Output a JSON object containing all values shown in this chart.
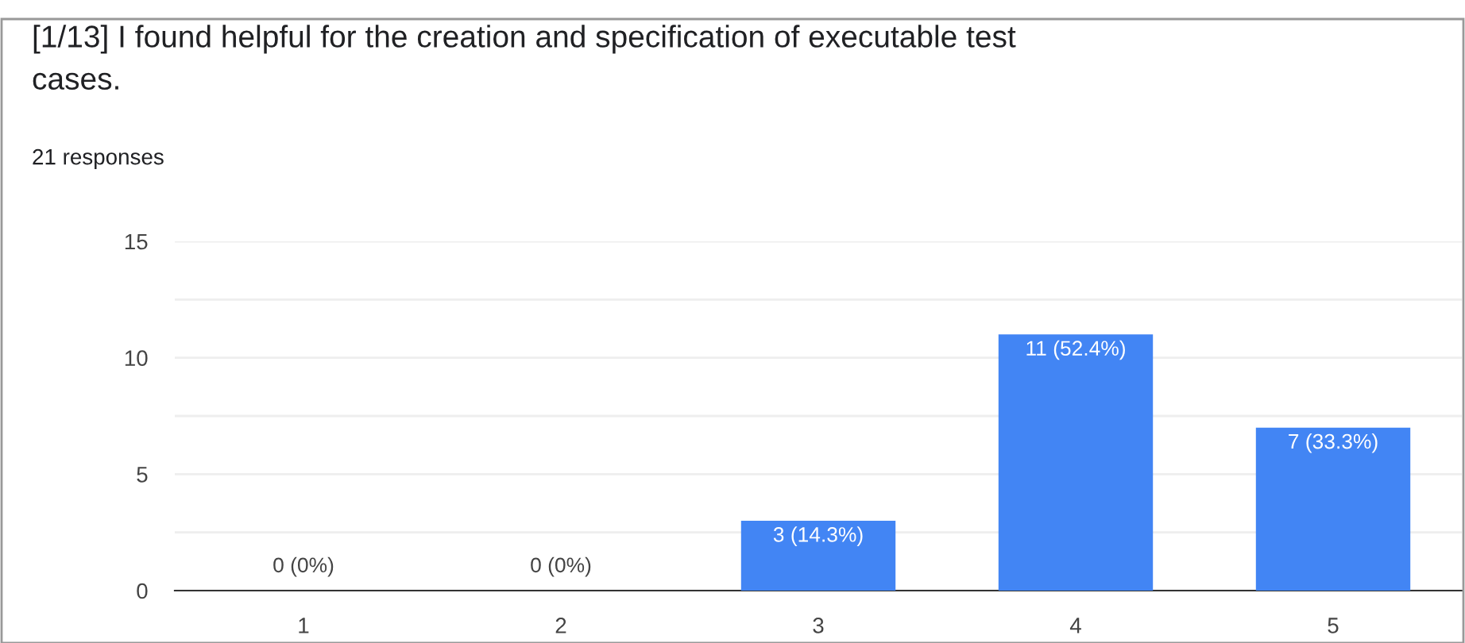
{
  "chart_data": {
    "type": "bar",
    "title": "[1/13] I found helpful for the creation and specification of executable test\ncases.",
    "subtitle": "21 responses",
    "categories": [
      "1",
      "2",
      "3",
      "4",
      "5"
    ],
    "values": [
      0,
      0,
      3,
      11,
      7
    ],
    "color": "#4285f4",
    "value_labels": [
      "0 (0%)",
      "0 (0%)",
      "3 (14.3%)",
      "11 (52.4%)",
      "7 (33.3%)"
    ],
    "ylim": [
      0,
      15
    ],
    "yticks": [
      0,
      {
        "value": 2.5,
        "label": null
      },
      5,
      {
        "value": 7.5,
        "label": null
      },
      10,
      {
        "value": 12.5,
        "label": null
      },
      15
    ],
    "grid": "y",
    "legend": false
  }
}
